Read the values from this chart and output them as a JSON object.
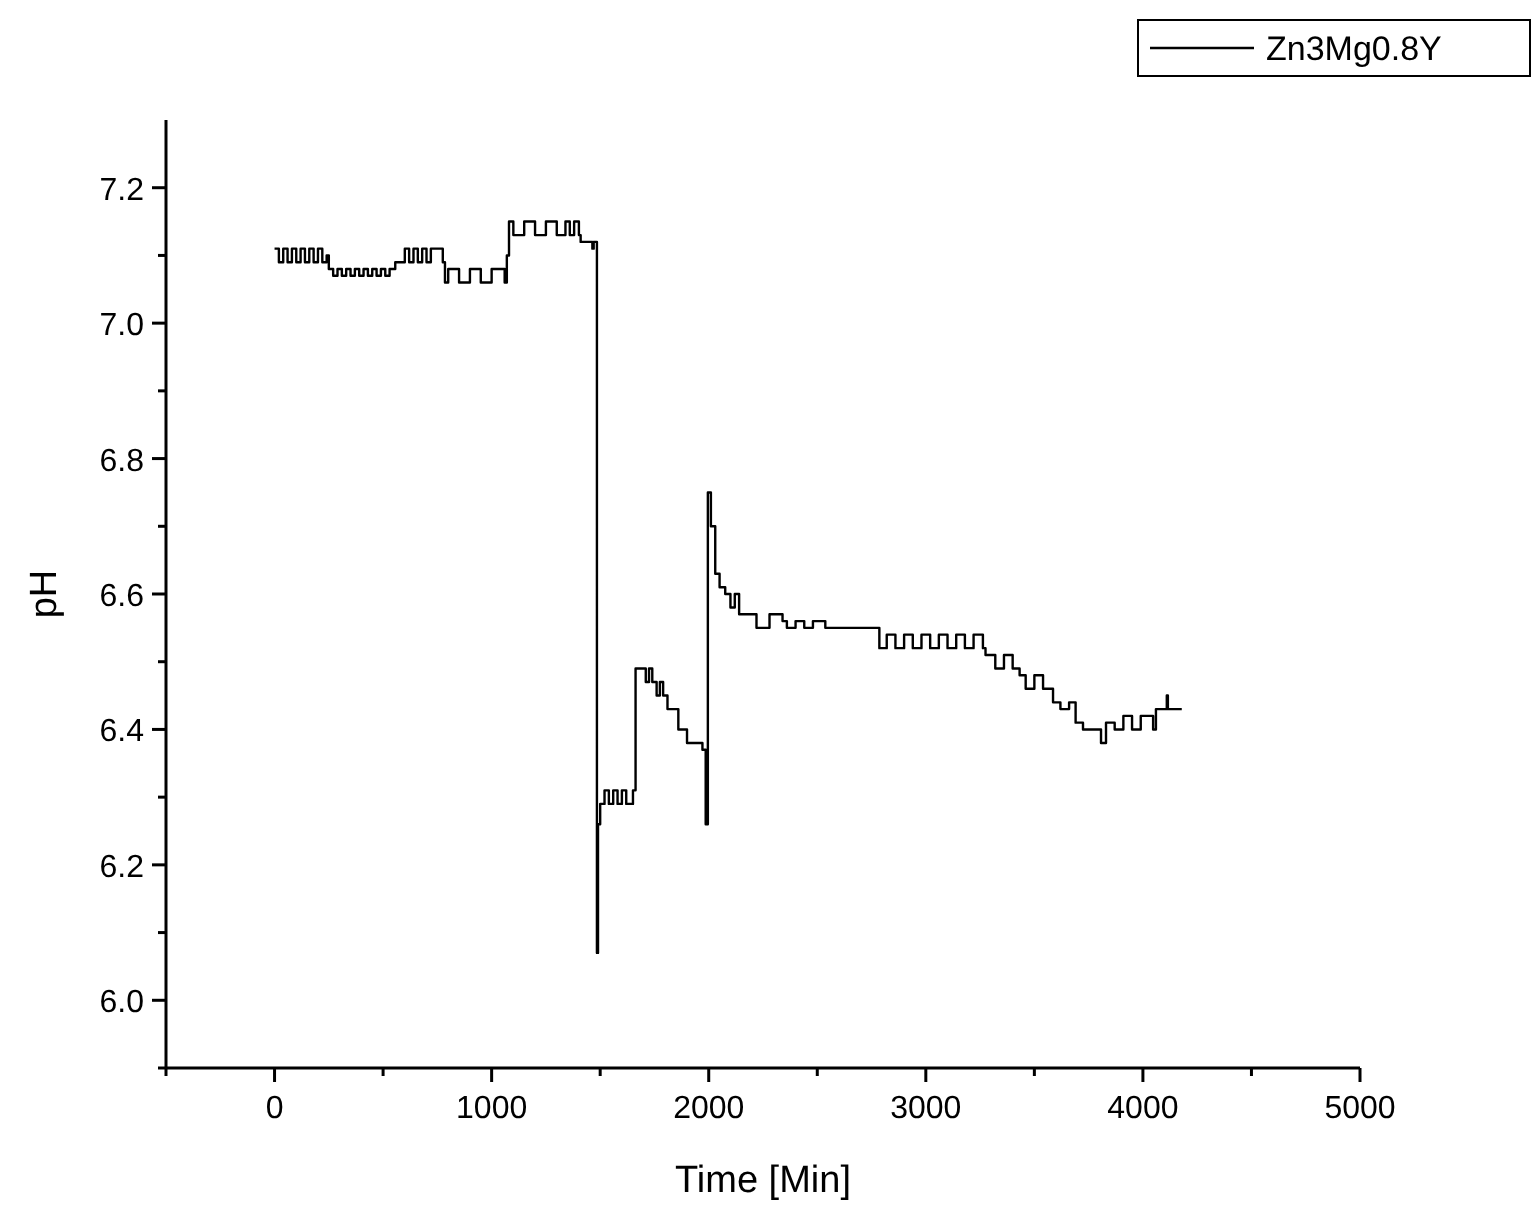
{
  "chart_data": {
    "type": "step",
    "xlabel": "Time [Min]",
    "ylabel": "pH",
    "xlim": [
      -500,
      5000
    ],
    "ylim": [
      5.9,
      7.3
    ],
    "xticks": [
      {
        "value": -500,
        "label": null
      },
      0,
      {
        "value": 500,
        "label": null
      },
      1000,
      {
        "value": 1500,
        "label": null
      },
      2000,
      {
        "value": 2500,
        "label": null
      },
      3000,
      {
        "value": 3500,
        "label": null
      },
      4000,
      {
        "value": 4500,
        "label": null
      },
      5000
    ],
    "yticks": [
      {
        "value": 5.9,
        "label": null
      },
      {
        "value": 6.0,
        "label": "6.0"
      },
      {
        "value": 6.1,
        "label": null
      },
      6.2,
      {
        "value": 6.3,
        "label": null
      },
      6.4,
      {
        "value": 6.5,
        "label": null
      },
      6.6,
      {
        "value": 6.7,
        "label": null
      },
      6.8,
      {
        "value": 6.9,
        "label": null
      },
      {
        "value": 7.0,
        "label": "7.0"
      },
      {
        "value": 7.1,
        "label": null
      },
      7.2
    ],
    "grid": false,
    "legend": "top right",
    "marker": "none",
    "line_style": "solid",
    "series": [
      {
        "name": "Zn3Mg0.8Y",
        "color": "#000000",
        "x": [
          0,
          20,
          40,
          60,
          80,
          100,
          120,
          140,
          160,
          180,
          200,
          220,
          240,
          250,
          270,
          290,
          310,
          330,
          350,
          370,
          390,
          410,
          430,
          450,
          470,
          490,
          510,
          530,
          556,
          600,
          620,
          640,
          660,
          680,
          700,
          720,
          775,
          785,
          800,
          850,
          900,
          950,
          1000,
          1060,
          1070,
          1080,
          1100,
          1150,
          1200,
          1250,
          1300,
          1340,
          1360,
          1380,
          1402,
          1410,
          1464,
          1470,
          1479,
          1485,
          1490,
          1500,
          1520,
          1540,
          1560,
          1580,
          1600,
          1620,
          1651,
          1663,
          1700,
          1710,
          1725,
          1740,
          1760,
          1775,
          1790,
          1810,
          1830,
          1860,
          1900,
          1940,
          1971,
          1986,
          1996,
          2010,
          2030,
          2050,
          2076,
          2100,
          2120,
          2140,
          2200,
          2220,
          2280,
          2340,
          2360,
          2400,
          2440,
          2480,
          2537,
          2700,
          2786,
          2820,
          2860,
          2900,
          2940,
          2980,
          3020,
          3060,
          3100,
          3140,
          3180,
          3220,
          3263,
          3275,
          3320,
          3360,
          3400,
          3432,
          3460,
          3500,
          3540,
          3586,
          3620,
          3660,
          3690,
          3724,
          3800,
          3807,
          3830,
          3870,
          3910,
          3950,
          3990,
          4047,
          4060,
          4108,
          4110,
          4115,
          4179
        ],
        "values": [
          7.11,
          7.09,
          7.11,
          7.09,
          7.11,
          7.09,
          7.11,
          7.09,
          7.11,
          7.09,
          7.11,
          7.09,
          7.1,
          7.08,
          7.07,
          7.08,
          7.07,
          7.08,
          7.07,
          7.08,
          7.07,
          7.08,
          7.07,
          7.08,
          7.07,
          7.08,
          7.07,
          7.08,
          7.09,
          7.11,
          7.09,
          7.11,
          7.09,
          7.11,
          7.09,
          7.11,
          7.09,
          7.06,
          7.08,
          7.06,
          7.08,
          7.06,
          7.08,
          7.06,
          7.1,
          7.15,
          7.13,
          7.15,
          7.13,
          7.15,
          7.13,
          7.15,
          7.13,
          7.15,
          7.13,
          7.12,
          7.11,
          7.12,
          7.12,
          6.07,
          6.26,
          6.29,
          6.31,
          6.29,
          6.31,
          6.29,
          6.31,
          6.29,
          6.31,
          6.49,
          6.49,
          6.47,
          6.49,
          6.47,
          6.45,
          6.47,
          6.45,
          6.43,
          6.43,
          6.4,
          6.38,
          6.38,
          6.37,
          6.26,
          6.75,
          6.7,
          6.63,
          6.61,
          6.6,
          6.58,
          6.6,
          6.57,
          6.57,
          6.55,
          6.57,
          6.56,
          6.55,
          6.56,
          6.55,
          6.56,
          6.55,
          6.55,
          6.52,
          6.54,
          6.52,
          6.54,
          6.52,
          6.54,
          6.52,
          6.54,
          6.52,
          6.54,
          6.52,
          6.54,
          6.52,
          6.51,
          6.49,
          6.51,
          6.49,
          6.48,
          6.46,
          6.48,
          6.46,
          6.44,
          6.43,
          6.44,
          6.41,
          6.4,
          6.4,
          6.38,
          6.41,
          6.4,
          6.42,
          6.4,
          6.42,
          6.4,
          6.43,
          6.43,
          6.45,
          6.43,
          6.43
        ]
      }
    ]
  }
}
